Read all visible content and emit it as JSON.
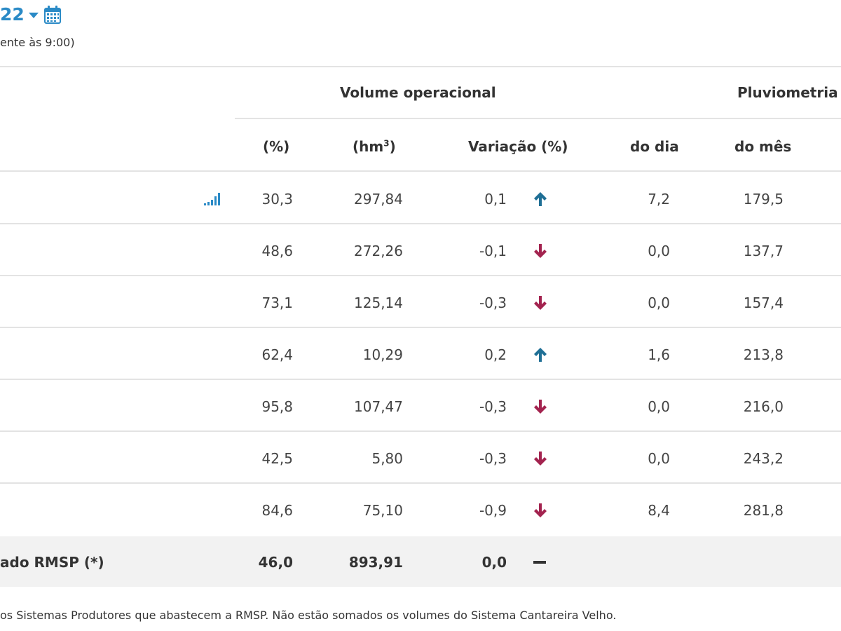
{
  "header": {
    "date_text": "22",
    "subtitle": "ente às 9:00)"
  },
  "table": {
    "group_headers": {
      "volume": "Volume operacional",
      "pluviometria": "Pluviometria"
    },
    "column_headers": {
      "pct": "(%)",
      "hm3_prefix": "(hm",
      "hm3_sup": "3",
      "hm3_suffix": ")",
      "variacao": "Variação (%)",
      "do_dia": "do dia",
      "do_mes": "do mês"
    },
    "rows": [
      {
        "pct": "30,3",
        "hm3": "297,84",
        "var": "0,1",
        "dir": "up",
        "dia": "7,2",
        "mes": "179,5"
      },
      {
        "pct": "48,6",
        "hm3": "272,26",
        "var": "-0,1",
        "dir": "down",
        "dia": "0,0",
        "mes": "137,7"
      },
      {
        "pct": "73,1",
        "hm3": "125,14",
        "var": "-0,3",
        "dir": "down",
        "dia": "0,0",
        "mes": "157,4"
      },
      {
        "pct": "62,4",
        "hm3": "10,29",
        "var": "0,2",
        "dir": "up",
        "dia": "1,6",
        "mes": "213,8"
      },
      {
        "pct": "95,8",
        "hm3": "107,47",
        "var": "-0,3",
        "dir": "down",
        "dia": "0,0",
        "mes": "216,0"
      },
      {
        "pct": "42,5",
        "hm3": "5,80",
        "var": "-0,3",
        "dir": "down",
        "dia": "0,0",
        "mes": "243,2"
      },
      {
        "pct": "84,6",
        "hm3": "75,10",
        "var": "-0,9",
        "dir": "down",
        "dia": "8,4",
        "mes": "281,8"
      }
    ],
    "total": {
      "label": "ado RMSP (*)",
      "pct": "46,0",
      "hm3": "893,91",
      "var": "0,0",
      "dir": "flat"
    }
  },
  "footnote": "os Sistemas Produtores que abastecem a RMSP. Não estão somados os volumes do Sistema Cantareira Velho.",
  "colors": {
    "accent": "#2a8ac6",
    "arrow_up": "#1f6f95",
    "arrow_down": "#a3234f",
    "total_row_bg": "#f2f2f2",
    "divider": "#e3e3e3"
  },
  "icons": {
    "calendar": "calendar-icon",
    "chart": "bar-chart-icon",
    "up": "arrow-up-icon",
    "down": "arrow-down-icon",
    "flat": "dash-icon"
  }
}
